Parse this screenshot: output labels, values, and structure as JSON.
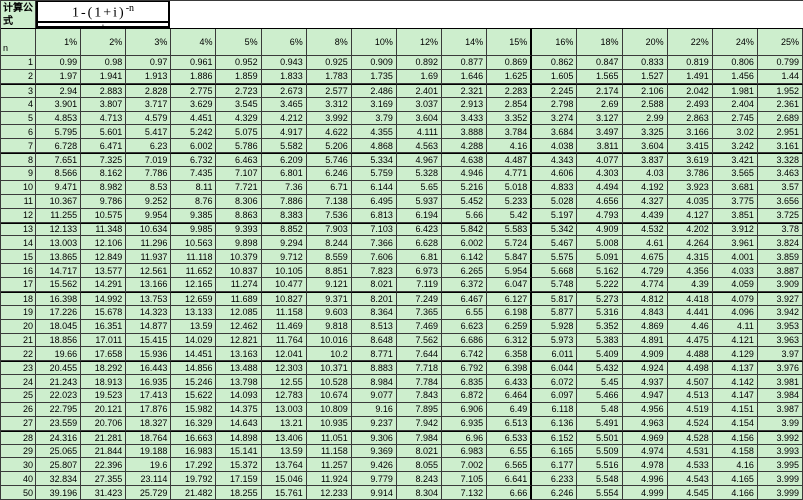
{
  "colors": {
    "cell_bg": "#cdeecd",
    "grid_line": "#3a3a3a",
    "heavy_line": "#000000",
    "formula_bg": "#ffffff"
  },
  "sheet": {
    "formula_label": "计算公式",
    "formula": {
      "numerator": "1-(1+i)",
      "exponent": "-n",
      "denominator": "i"
    },
    "corner_header": "n",
    "columns": [
      "1%",
      "2%",
      "3%",
      "4%",
      "5%",
      "6%",
      "8%",
      "10%",
      "12%",
      "14%",
      "15%",
      "16%",
      "18%",
      "20%",
      "22%",
      "24%",
      "25%"
    ],
    "rows": [
      {
        "n": "1",
        "values": [
          "0.99",
          "0.98",
          "0.97",
          "0.961",
          "0.952",
          "0.943",
          "0.925",
          "0.909",
          "0.892",
          "0.877",
          "0.869",
          "0.862",
          "0.847",
          "0.833",
          "0.819",
          "0.806",
          "0.799"
        ]
      },
      {
        "n": "2",
        "values": [
          "1.97",
          "1.941",
          "1.913",
          "1.886",
          "1.859",
          "1.833",
          "1.783",
          "1.735",
          "1.69",
          "1.646",
          "1.625",
          "1.605",
          "1.565",
          "1.527",
          "1.491",
          "1.456",
          "1.44"
        ]
      },
      {
        "n": "3",
        "values": [
          "2.94",
          "2.883",
          "2.828",
          "2.775",
          "2.723",
          "2.673",
          "2.577",
          "2.486",
          "2.401",
          "2.321",
          "2.283",
          "2.245",
          "2.174",
          "2.106",
          "2.042",
          "1.981",
          "1.952"
        ]
      },
      {
        "n": "4",
        "values": [
          "3.901",
          "3.807",
          "3.717",
          "3.629",
          "3.545",
          "3.465",
          "3.312",
          "3.169",
          "3.037",
          "2.913",
          "2.854",
          "2.798",
          "2.69",
          "2.588",
          "2.493",
          "2.404",
          "2.361"
        ]
      },
      {
        "n": "5",
        "values": [
          "4.853",
          "4.713",
          "4.579",
          "4.451",
          "4.329",
          "4.212",
          "3.992",
          "3.79",
          "3.604",
          "3.433",
          "3.352",
          "3.274",
          "3.127",
          "2.99",
          "2.863",
          "2.745",
          "2.689"
        ]
      },
      {
        "n": "6",
        "values": [
          "5.795",
          "5.601",
          "5.417",
          "5.242",
          "5.075",
          "4.917",
          "4.622",
          "4.355",
          "4.111",
          "3.888",
          "3.784",
          "3.684",
          "3.497",
          "3.325",
          "3.166",
          "3.02",
          "2.951"
        ]
      },
      {
        "n": "7",
        "values": [
          "6.728",
          "6.471",
          "6.23",
          "6.002",
          "5.786",
          "5.582",
          "5.206",
          "4.868",
          "4.563",
          "4.288",
          "4.16",
          "4.038",
          "3.811",
          "3.604",
          "3.415",
          "3.242",
          "3.161"
        ]
      },
      {
        "n": "8",
        "values": [
          "7.651",
          "7.325",
          "7.019",
          "6.732",
          "6.463",
          "6.209",
          "5.746",
          "5.334",
          "4.967",
          "4.638",
          "4.487",
          "4.343",
          "4.077",
          "3.837",
          "3.619",
          "3.421",
          "3.328"
        ]
      },
      {
        "n": "9",
        "values": [
          "8.566",
          "8.162",
          "7.786",
          "7.435",
          "7.107",
          "6.801",
          "6.246",
          "5.759",
          "5.328",
          "4.946",
          "4.771",
          "4.606",
          "4.303",
          "4.03",
          "3.786",
          "3.565",
          "3.463"
        ]
      },
      {
        "n": "10",
        "values": [
          "9.471",
          "8.982",
          "8.53",
          "8.11",
          "7.721",
          "7.36",
          "6.71",
          "6.144",
          "5.65",
          "5.216",
          "5.018",
          "4.833",
          "4.494",
          "4.192",
          "3.923",
          "3.681",
          "3.57"
        ]
      },
      {
        "n": "11",
        "values": [
          "10.367",
          "9.786",
          "9.252",
          "8.76",
          "8.306",
          "7.886",
          "7.138",
          "6.495",
          "5.937",
          "5.452",
          "5.233",
          "5.028",
          "4.656",
          "4.327",
          "4.035",
          "3.775",
          "3.656"
        ]
      },
      {
        "n": "12",
        "values": [
          "11.255",
          "10.575",
          "9.954",
          "9.385",
          "8.863",
          "8.383",
          "7.536",
          "6.813",
          "6.194",
          "5.66",
          "5.42",
          "5.197",
          "4.793",
          "4.439",
          "4.127",
          "3.851",
          "3.725"
        ]
      },
      {
        "n": "13",
        "values": [
          "12.133",
          "11.348",
          "10.634",
          "9.985",
          "9.393",
          "8.852",
          "7.903",
          "7.103",
          "6.423",
          "5.842",
          "5.583",
          "5.342",
          "4.909",
          "4.532",
          "4.202",
          "3.912",
          "3.78"
        ]
      },
      {
        "n": "14",
        "values": [
          "13.003",
          "12.106",
          "11.296",
          "10.563",
          "9.898",
          "9.294",
          "8.244",
          "7.366",
          "6.628",
          "6.002",
          "5.724",
          "5.467",
          "5.008",
          "4.61",
          "4.264",
          "3.961",
          "3.824"
        ]
      },
      {
        "n": "15",
        "values": [
          "13.865",
          "12.849",
          "11.937",
          "11.118",
          "10.379",
          "9.712",
          "8.559",
          "7.606",
          "6.81",
          "6.142",
          "5.847",
          "5.575",
          "5.091",
          "4.675",
          "4.315",
          "4.001",
          "3.859"
        ]
      },
      {
        "n": "16",
        "values": [
          "14.717",
          "13.577",
          "12.561",
          "11.652",
          "10.837",
          "10.105",
          "8.851",
          "7.823",
          "6.973",
          "6.265",
          "5.954",
          "5.668",
          "5.162",
          "4.729",
          "4.356",
          "4.033",
          "3.887"
        ]
      },
      {
        "n": "17",
        "values": [
          "15.562",
          "14.291",
          "13.166",
          "12.165",
          "11.274",
          "10.477",
          "9.121",
          "8.021",
          "7.119",
          "6.372",
          "6.047",
          "5.748",
          "5.222",
          "4.774",
          "4.39",
          "4.059",
          "3.909"
        ]
      },
      {
        "n": "18",
        "values": [
          "16.398",
          "14.992",
          "13.753",
          "12.659",
          "11.689",
          "10.827",
          "9.371",
          "8.201",
          "7.249",
          "6.467",
          "6.127",
          "5.817",
          "5.273",
          "4.812",
          "4.418",
          "4.079",
          "3.927"
        ]
      },
      {
        "n": "19",
        "values": [
          "17.226",
          "15.678",
          "14.323",
          "13.133",
          "12.085",
          "11.158",
          "9.603",
          "8.364",
          "7.365",
          "6.55",
          "6.198",
          "5.877",
          "5.316",
          "4.843",
          "4.441",
          "4.096",
          "3.942"
        ]
      },
      {
        "n": "20",
        "values": [
          "18.045",
          "16.351",
          "14.877",
          "13.59",
          "12.462",
          "11.469",
          "9.818",
          "8.513",
          "7.469",
          "6.623",
          "6.259",
          "5.928",
          "5.352",
          "4.869",
          "4.46",
          "4.11",
          "3.953"
        ]
      },
      {
        "n": "21",
        "values": [
          "18.856",
          "17.011",
          "15.415",
          "14.029",
          "12.821",
          "11.764",
          "10.016",
          "8.648",
          "7.562",
          "6.686",
          "6.312",
          "5.973",
          "5.383",
          "4.891",
          "4.475",
          "4.121",
          "3.963"
        ]
      },
      {
        "n": "22",
        "values": [
          "19.66",
          "17.658",
          "15.936",
          "14.451",
          "13.163",
          "12.041",
          "10.2",
          "8.771",
          "7.644",
          "6.742",
          "6.358",
          "6.011",
          "5.409",
          "4.909",
          "4.488",
          "4.129",
          "3.97"
        ]
      },
      {
        "n": "23",
        "values": [
          "20.455",
          "18.292",
          "16.443",
          "14.856",
          "13.488",
          "12.303",
          "10.371",
          "8.883",
          "7.718",
          "6.792",
          "6.398",
          "6.044",
          "5.432",
          "4.924",
          "4.498",
          "4.137",
          "3.976"
        ]
      },
      {
        "n": "24",
        "values": [
          "21.243",
          "18.913",
          "16.935",
          "15.246",
          "13.798",
          "12.55",
          "10.528",
          "8.984",
          "7.784",
          "6.835",
          "6.433",
          "6.072",
          "5.45",
          "4.937",
          "4.507",
          "4.142",
          "3.981"
        ]
      },
      {
        "n": "25",
        "values": [
          "22.023",
          "19.523",
          "17.413",
          "15.622",
          "14.093",
          "12.783",
          "10.674",
          "9.077",
          "7.843",
          "6.872",
          "6.464",
          "6.097",
          "5.466",
          "4.947",
          "4.513",
          "4.147",
          "3.984"
        ]
      },
      {
        "n": "26",
        "values": [
          "22.795",
          "20.121",
          "17.876",
          "15.982",
          "14.375",
          "13.003",
          "10.809",
          "9.16",
          "7.895",
          "6.906",
          "6.49",
          "6.118",
          "5.48",
          "4.956",
          "4.519",
          "4.151",
          "3.987"
        ]
      },
      {
        "n": "27",
        "values": [
          "23.559",
          "20.706",
          "18.327",
          "16.329",
          "14.643",
          "13.21",
          "10.935",
          "9.237",
          "7.942",
          "6.935",
          "6.513",
          "6.136",
          "5.491",
          "4.963",
          "4.524",
          "4.154",
          "3.99"
        ]
      },
      {
        "n": "28",
        "values": [
          "24.316",
          "21.281",
          "18.764",
          "16.663",
          "14.898",
          "13.406",
          "11.051",
          "9.306",
          "7.984",
          "6.96",
          "6.533",
          "6.152",
          "5.501",
          "4.969",
          "4.528",
          "4.156",
          "3.992"
        ]
      },
      {
        "n": "29",
        "values": [
          "25.065",
          "21.844",
          "19.188",
          "16.983",
          "15.141",
          "13.59",
          "11.158",
          "9.369",
          "8.021",
          "6.983",
          "6.55",
          "6.165",
          "5.509",
          "4.974",
          "4.531",
          "4.158",
          "3.993"
        ]
      },
      {
        "n": "30",
        "values": [
          "25.807",
          "22.396",
          "19.6",
          "17.292",
          "15.372",
          "13.764",
          "11.257",
          "9.426",
          "8.055",
          "7.002",
          "6.565",
          "6.177",
          "5.516",
          "4.978",
          "4.533",
          "4.16",
          "3.995"
        ]
      },
      {
        "n": "40",
        "values": [
          "32.834",
          "27.355",
          "23.114",
          "19.792",
          "17.159",
          "15.046",
          "11.924",
          "9.779",
          "8.243",
          "7.105",
          "6.641",
          "6.233",
          "5.548",
          "4.996",
          "4.543",
          "4.165",
          "3.999"
        ]
      },
      {
        "n": "50",
        "values": [
          "39.196",
          "31.423",
          "25.729",
          "21.482",
          "18.255",
          "15.761",
          "12.233",
          "9.914",
          "8.304",
          "7.132",
          "6.66",
          "6.246",
          "5.554",
          "4.999",
          "4.545",
          "4.166",
          "3.999"
        ]
      }
    ]
  }
}
